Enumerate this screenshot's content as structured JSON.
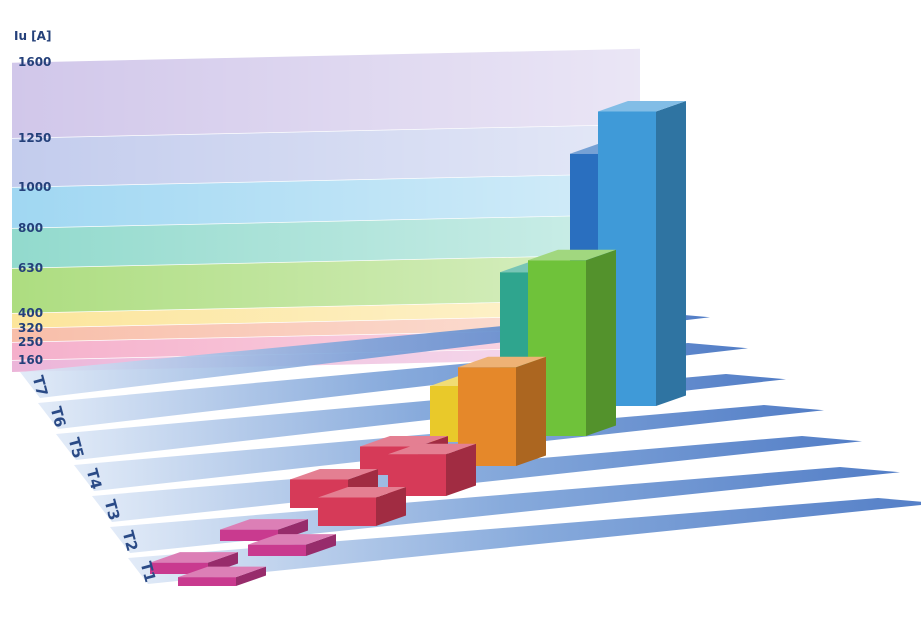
{
  "chart_data": {
    "type": "bar",
    "ylabel": "Iu [A]",
    "y_ticks": [
      160,
      250,
      320,
      400,
      630,
      800,
      1000,
      1250,
      1600
    ],
    "ylim": [
      0,
      1600
    ],
    "categories": [
      "T1",
      "T2",
      "T3",
      "T4",
      "T5",
      "T6",
      "T7"
    ],
    "series": [
      {
        "values": [
          160,
          160,
          250,
          250,
          400,
          800,
          1250
        ]
      },
      {
        "values": [
          125,
          160,
          250,
          320,
          630,
          1000,
          1600
        ]
      }
    ],
    "colors": {
      "T1": "#c93a8f",
      "T2": "#c93a8f",
      "T3": "#d63a58",
      "T4": "#d63a58",
      "T5": "#e5882a",
      "T6": "#e9c92a",
      "T7": "#6fc23a",
      "T7b": "#2fa58e",
      "T7c": "#3f9ad8",
      "T7d": "#1c4f9e"
    },
    "bar_colors_series1": [
      "#c93a8f",
      "#c93a8f",
      "#d63a58",
      "#d63a58",
      "#e9c92a",
      "#2fa58e",
      "#2a6fbf"
    ],
    "bar_colors_series2": [
      "#c93a8f",
      "#c93a8f",
      "#d63a58",
      "#d63a58",
      "#e5882a",
      "#6fc23a",
      "#3f9ad8"
    ],
    "band_colors": [
      "#e9a8d2",
      "#f3a2c2",
      "#f7b39a",
      "#fbe08a",
      "#9fd76a",
      "#7fd3c4",
      "#8fd0f0",
      "#b9c3ea",
      "#c9bde6"
    ],
    "grid": false
  }
}
